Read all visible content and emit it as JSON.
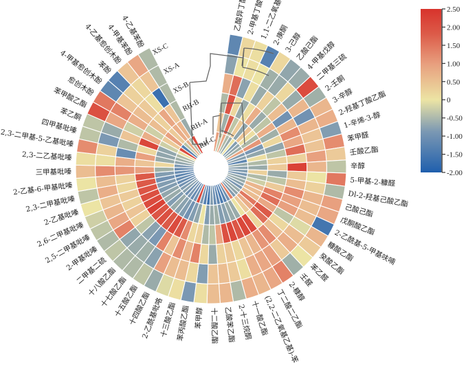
{
  "chart_data": {
    "type": "heatmap",
    "layout": "circular",
    "rings_outer_to_inner": [
      "XS-C",
      "XS-A",
      "XS-B",
      "RH-B",
      "RH-A",
      "RH-C"
    ],
    "categories": [
      "乙酸异丁酯",
      "2-甲基丁酸乙酯",
      "1,1-二乙氧基-3-甲基丁烷",
      "2-庚酮",
      "3-己醇",
      "乙酸己酯",
      "4-甲基戊醇",
      "二甲基三硫",
      "2-壬酮",
      "3-辛醇",
      "2-羟基丁酸乙酯",
      "1-辛烯-3-醇",
      "苯甲醛",
      "壬酸乙酯",
      "辛醇",
      "5-甲基-2-糠醛",
      "Dl-2-羟基己酸乙酯",
      "己酸己酯",
      "戊酮酸乙酯",
      "2-乙酰基-5-甲基呋喃",
      "糠酸乙酯",
      "癸酸乙酯",
      "苯乙醛",
      "壬醛",
      "2-糠醇",
      "丁二酸二乙酯",
      "(2,2-二乙氧基乙基)-苯",
      "十一酸乙酯",
      "2-十三烷酮",
      "乙酸苯乙酯",
      "十二酸乙酯",
      "苯甲醇",
      "苯丙酸乙酯",
      "十三酸乙酯",
      "2-乙酰基吡咯",
      "十四酸乙酯",
      "十五酸乙酯",
      "十七酸乙酯",
      "十八酸乙酯",
      "二甲基二硫",
      "2-甲基吡嗪",
      "2,5-二甲基吡嗪",
      "2,6-二甲基吡嗪",
      "2-乙基吡嗪",
      "2,3-二甲基吡嗪",
      "2-乙基-6-甲基吡嗪",
      "三甲基吡嗪",
      "2,3-二乙基吡嗪",
      "2,3-二甲基-5-乙基吡嗪",
      "四甲基吡嗪",
      "苯乙酮",
      "苯甲酸乙酯",
      "愈创木酚",
      "4-甲基愈创木酚",
      "苯酚",
      "4-乙基愈创木酚",
      "4-甲基苯酚",
      "4-乙基苯酚"
    ],
    "series": [
      {
        "name": "XS-C",
        "values": [
          -1.3,
          0.2,
          0.1,
          -1.4,
          0.2,
          -0.7,
          -0.6,
          2.0,
          -0.5,
          0.7,
          0.8,
          -0.9,
          1.2,
          0.4,
          -0.3,
          1.4,
          -0.4,
          1.0,
          0.9,
          -1.6,
          0.7,
          0.4,
          0.0,
          -0.5,
          1.3,
          0.9,
          0.7,
          0.8,
          -0.4,
          0.7,
          0.6,
          0.1,
          -1.0,
          0.1,
          -0.1,
          -0.6,
          -0.3,
          -0.4,
          -0.4,
          -0.3,
          -0.4,
          -0.3,
          -0.2,
          0.0,
          -0.3,
          0.0,
          0.6,
          0.1,
          1.2,
          -0.3,
          -0.3,
          1.9,
          1.4,
          -1.3,
          -1.4,
          0.5,
          0.9,
          -0.4
        ]
      },
      {
        "name": "XS-A",
        "values": [
          -0.8,
          0.0,
          0.1,
          0.0,
          -0.5,
          -0.6,
          0.2,
          -0.6,
          0.7,
          -1.1,
          0.7,
          0.5,
          0.5,
          1.0,
          0.7,
          0.0,
          0.3,
          0.7,
          0.6,
          0.6,
          -0.1,
          0.6,
          0.8,
          0.4,
          1.0,
          0.9,
          0.8,
          0.1,
          0.4,
          0.6,
          0.5,
          -0.9,
          0.2,
          0.6,
          0.6,
          1.0,
          -0.8,
          -0.5,
          -0.6,
          -0.7,
          1.3,
          0.9,
          0.7,
          0.5,
          0.8,
          0.6,
          1.2,
          0.1,
          0.3,
          -1.0,
          -0.6,
          0.9,
          1.3,
          0.5,
          0.3,
          0.2,
          0.5,
          -0.4
        ]
      },
      {
        "name": "XS-B",
        "values": [
          0.8,
          1.5,
          -0.8,
          0.1,
          -0.6,
          0.3,
          -0.3,
          0.6,
          -1.1,
          0.7,
          1.2,
          0.9,
          1.5,
          0.3,
          2.2,
          0.4,
          0.6,
          1.2,
          1.0,
          1.0,
          -0.3,
          0.2,
          0.6,
          1.2,
          1.1,
          0.7,
          0.5,
          0.2,
          0.4,
          0.3,
          -0.6,
          0.2,
          1.3,
          0.7,
          1.2,
          0.5,
          1.3,
          -1.0,
          -0.8,
          -0.3,
          0.3,
          0.5,
          0.3,
          0.4,
          0.2,
          0.3,
          1.1,
          0.8,
          -1.2,
          -0.4,
          0.5,
          -0.2,
          0.8,
          0.6,
          0.4,
          0.1,
          -1.7,
          -0.4
        ]
      },
      {
        "name": "RH-B",
        "values": [
          -0.4,
          1.8,
          0.2,
          -0.6,
          0.1,
          0.8,
          -0.6,
          -0.3,
          0.8,
          -0.5,
          0.2,
          -0.7,
          -0.3,
          0.3,
          0.4,
          -0.6,
          -0.3,
          0.4,
          1.3,
          1.5,
          0.9,
          1.7,
          1.5,
          0.2,
          2.0,
          2.1,
          1.8,
          2.1,
          1.9,
          0.9,
          -0.3,
          -0.4,
          0.3,
          0.2,
          1.2,
          1.7,
          2.0,
          1.7,
          1.9,
          1.8,
          2.2,
          2.0,
          1.9,
          1.8,
          1.7,
          1.7,
          1.0,
          0.5,
          1.0,
          0.2,
          2.1,
          0.8,
          -0.2,
          0.6,
          0.3,
          0.9,
          0.5,
          -0.4
        ]
      },
      {
        "name": "RH-A",
        "values": [
          0.5,
          -0.5,
          1.6,
          -0.3,
          0.4,
          -0.7,
          0.5,
          0.1,
          -0.4,
          1.1,
          -1.0,
          -0.7,
          0.1,
          -0.4,
          -0.6,
          0.3,
          -0.4,
          -0.2,
          0.7,
          0.6,
          0.6,
          1.4,
          0.8,
          0.4,
          0.0,
          -0.6,
          -0.6,
          -0.8,
          -0.9,
          -0.5,
          -0.6,
          -0.9,
          0.0,
          -0.7,
          -0.9,
          -1.1,
          -0.9,
          -0.8,
          -0.6,
          -0.9,
          -0.6,
          -0.7,
          -0.9,
          -0.9,
          -1.1,
          -0.9,
          -0.5,
          0.2,
          -0.6,
          -0.7,
          -0.7,
          -0.2,
          0.4,
          1.0,
          0.4,
          0.8,
          0.7,
          -0.6
        ]
      },
      {
        "name": "RH-C",
        "values": [
          1.0,
          -0.3,
          0.9,
          -0.4,
          -0.6,
          0.0,
          -0.9,
          -0.7,
          -0.5,
          0.9,
          -0.9,
          -0.8,
          -1.3,
          -0.6,
          -0.8,
          -0.9,
          -1.0,
          -0.7,
          -0.6,
          -0.8,
          -1.0,
          -0.6,
          -0.7,
          -0.9,
          1.3,
          -1.1,
          -1.4,
          -1.5,
          -1.3,
          -1.2,
          -0.9,
          -1.6,
          -1.4,
          -1.0,
          2.0,
          -1.1,
          -1.2,
          -1.0,
          -1.1,
          -0.8,
          -0.9,
          -1.1,
          -1.2,
          -1.2,
          -1.3,
          -1.2,
          -1.2,
          -1.0,
          -0.7,
          -0.5,
          -0.4,
          0.1,
          2.0,
          -1.4,
          -0.3,
          0.8,
          -0.4,
          2.0
        ]
      }
    ],
    "colorbar": {
      "range": [
        -2.0,
        2.5
      ],
      "ticks": [
        "2.50",
        "2.00",
        "1.50",
        "1.00",
        "0.50",
        "0",
        "-0.50",
        "-1.00",
        "-1.50",
        "-2.00"
      ],
      "tick_values": [
        2.5,
        2.0,
        1.5,
        1.0,
        0.5,
        0,
        -0.5,
        -1.0,
        -1.5,
        -2.0
      ],
      "colors": {
        "low": "#1f5fad",
        "mid_low": "#8fa6b0",
        "mid": "#ece4a4",
        "mid_high": "#e8967a",
        "high": "#d8332c"
      }
    },
    "dendrogram": "hierarchical clustering of samples (rows)"
  }
}
